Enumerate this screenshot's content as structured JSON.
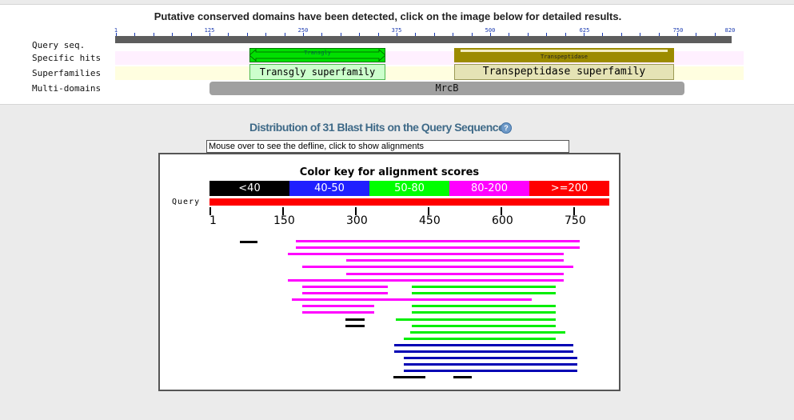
{
  "header": {
    "title": "Putative conserved domains have been detected, click on the image below for detailed results."
  },
  "domain_rows": {
    "query_seq": "Query seq.",
    "specific_hits": "Specific hits",
    "superfamilies": "Superfamilies",
    "multi_domains": "Multi-domains"
  },
  "ruler_ticks": [
    "1",
    "125",
    "250",
    "375",
    "500",
    "625",
    "750",
    "820"
  ],
  "domains": {
    "transgly_hit": "Transgly",
    "transgly_superfamily": "Transgly superfamily",
    "transpeptidase_hit": "Transpeptidase",
    "transpeptidase_superfamily": "Transpeptidase superfamily",
    "multi_domain": "MrcB"
  },
  "blast": {
    "title": "Distribution of 31 Blast Hits on the Query Sequence",
    "defline_text": "Mouse over to see the defline, click to show alignments",
    "color_key_title": "Color key for alignment scores",
    "color_key": [
      {
        "label": "<40",
        "color": "#000000"
      },
      {
        "label": "40-50",
        "color": "#2020ff"
      },
      {
        "label": "50-80",
        "color": "#00ff00"
      },
      {
        "label": "80-200",
        "color": "#ff00ff"
      },
      {
        "label": ">=200",
        "color": "#ff0000"
      }
    ],
    "query_label": "Query",
    "axis_labels": [
      "1",
      "150",
      "300",
      "450",
      "600",
      "750"
    ]
  },
  "colors": {
    "specific_band": "#fff0ff",
    "superfamily_band": "#fffee0",
    "title_blue": "#3f6a88"
  }
}
